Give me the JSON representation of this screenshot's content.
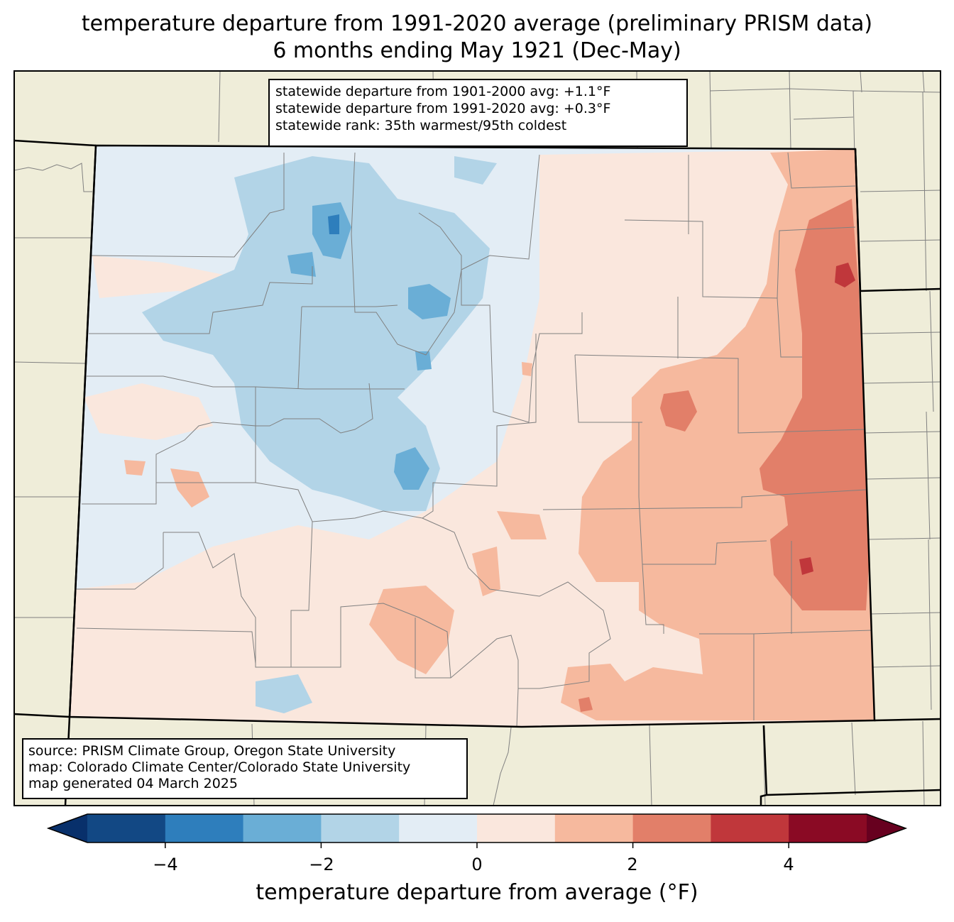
{
  "title": {
    "line1": "temperature departure from 1991-2020 average (preliminary PRISM data)",
    "line2": "6 months ending May 1921 (Dec-May)"
  },
  "stats": {
    "line1": "statewide departure from 1901-2000 avg: +1.1°F",
    "line2": "statewide departure from 1991-2020 avg: +0.3°F",
    "line3": "statewide rank: 35th warmest/95th coldest"
  },
  "source": {
    "line1": "source: PRISM Climate Group, Oregon State University",
    "line2": "map: Colorado Climate Center/Colorado State University",
    "line3": "map generated 04 March 2025"
  },
  "colorbar": {
    "label": "temperature departure from average (°F)",
    "ticks": [
      "−4",
      "−2",
      "0",
      "2",
      "4"
    ],
    "bins": [
      {
        "range": "< -5",
        "color": "#08306b"
      },
      {
        "range": "-5 to -4",
        "color": "#124884"
      },
      {
        "range": "-4 to -3",
        "color": "#2e7ebc"
      },
      {
        "range": "-3 to -2",
        "color": "#6aaed6"
      },
      {
        "range": "-2 to -1",
        "color": "#b2d4e7"
      },
      {
        "range": "-1 to 0",
        "color": "#e3edf5"
      },
      {
        "range": "0 to 1",
        "color": "#fae7dd"
      },
      {
        "range": "1 to 2",
        "color": "#f6b99e"
      },
      {
        "range": "2 to 3",
        "color": "#e27f69"
      },
      {
        "range": "3 to 4",
        "color": "#c0373b"
      },
      {
        "range": "4 to 5",
        "color": "#8a0a24"
      },
      {
        "range": "> 5",
        "color": "#67001f"
      }
    ]
  },
  "colors": {
    "land": "#efedd9",
    "state_border": "#000000",
    "county_border": "#808080"
  }
}
